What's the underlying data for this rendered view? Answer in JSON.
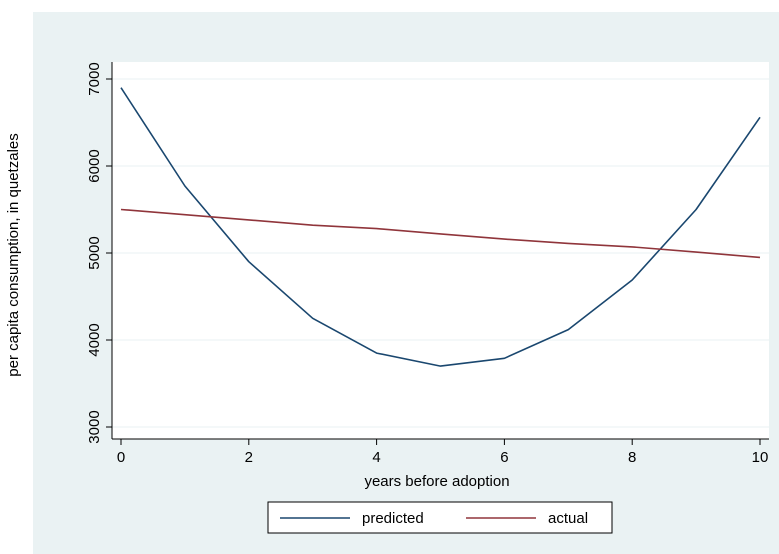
{
  "colors": {
    "outer_background": "#eaf2f3",
    "plot_background": "#ffffff",
    "gridline": "#eaf2f3",
    "axis": "#000000",
    "predicted": "#1a476f",
    "actual": "#90353b"
  },
  "chart_data": {
    "type": "line",
    "title": "",
    "xlabel": "years before adoption",
    "ylabel": "per capita consumption, in quetzales",
    "xlim": [
      0,
      10
    ],
    "ylim": [
      3000,
      7000
    ],
    "x_ticks": [
      0,
      2,
      4,
      6,
      8,
      10
    ],
    "y_ticks": [
      3000,
      4000,
      5000,
      6000,
      7000
    ],
    "x_tick_labels": [
      "0",
      "2",
      "4",
      "6",
      "8",
      "10"
    ],
    "y_tick_labels": [
      "3000",
      "4000",
      "5000",
      "6000",
      "7000"
    ],
    "grid": true,
    "legend_position": "bottom",
    "x": [
      0,
      1,
      2,
      3,
      4,
      5,
      6,
      7,
      8,
      9,
      10
    ],
    "series": [
      {
        "name": "predicted",
        "color": "#1a476f",
        "values": [
          6900,
          5770,
          4900,
          4250,
          3850,
          3700,
          3790,
          4120,
          4690,
          5500,
          6560
        ]
      },
      {
        "name": "actual",
        "color": "#90353b",
        "values": [
          5500,
          5440,
          5380,
          5320,
          5280,
          5220,
          5160,
          5110,
          5070,
          5010,
          4950
        ]
      }
    ]
  }
}
